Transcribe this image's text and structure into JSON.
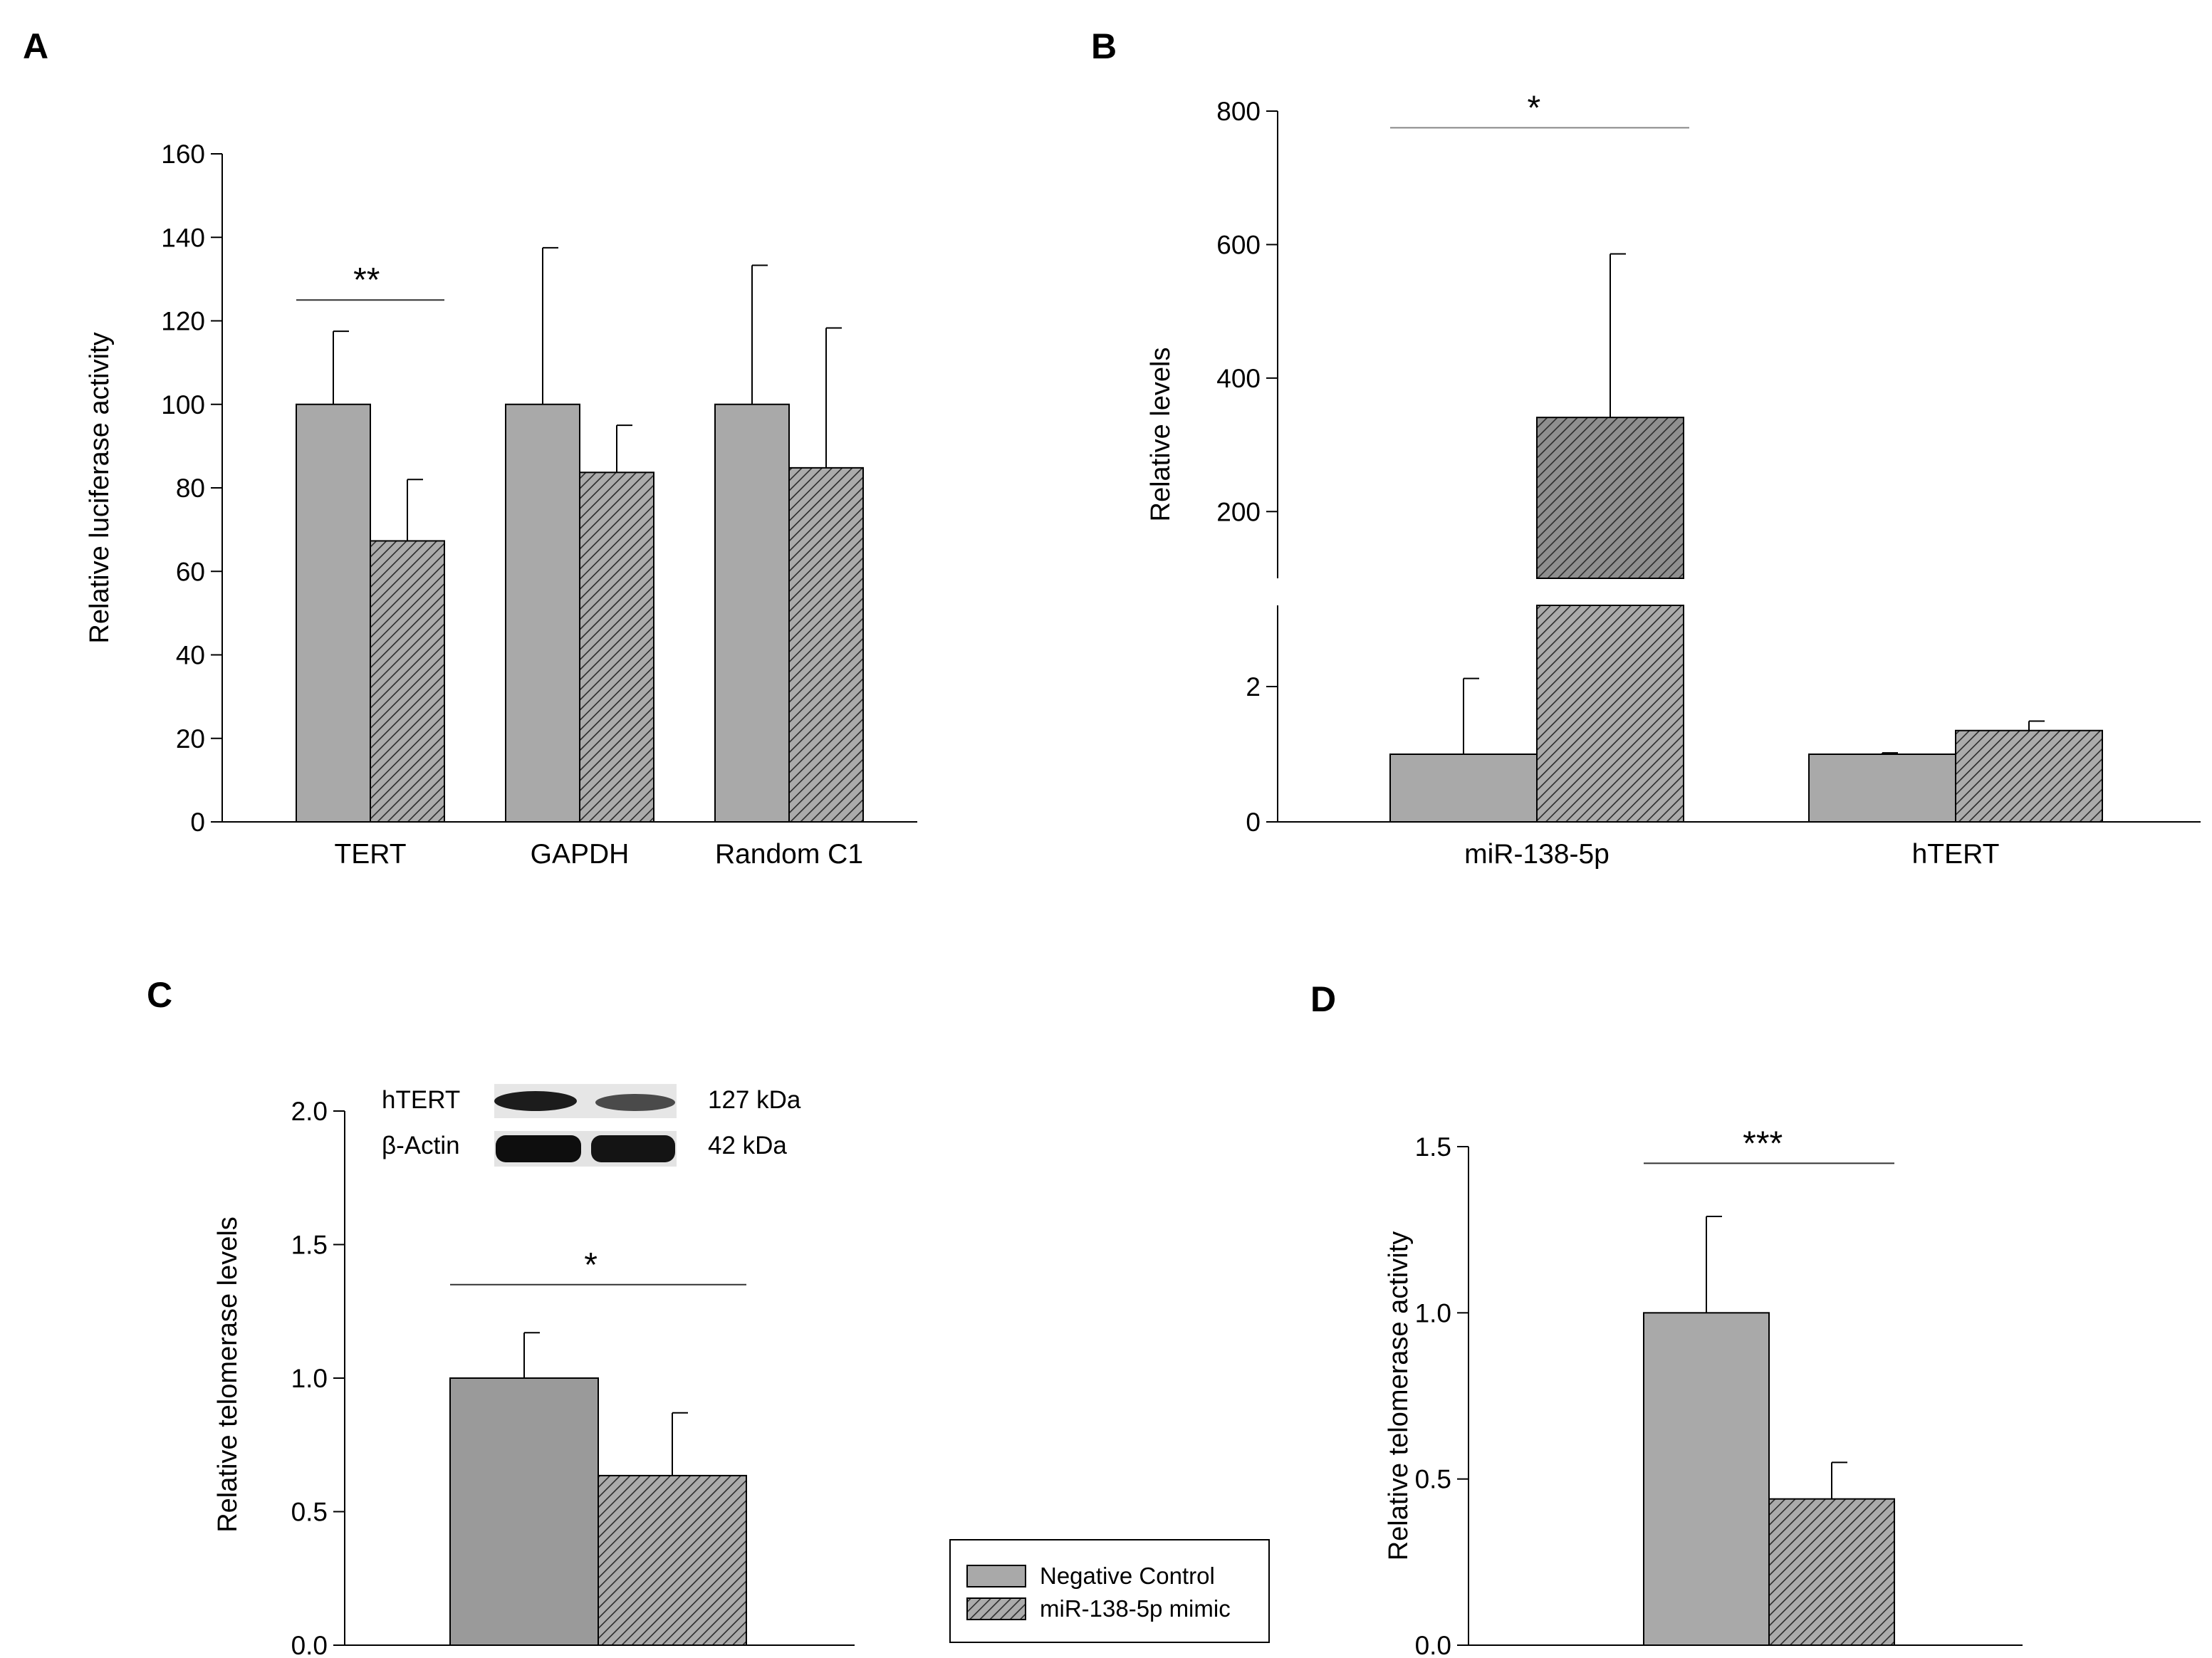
{
  "colors": {
    "control": "#a9a9a9",
    "control_dark": "#9a9a9a",
    "mimic": "#ababab",
    "mimic_dark": "#8f8f8f",
    "hatch": "#2b2b2b",
    "line": "#000000",
    "sig": "#333333"
  },
  "legend": {
    "entries": [
      "Negative Control",
      "miR-138-5p mimic"
    ]
  },
  "blot": {
    "rows": [
      {
        "label": "hTERT",
        "size": "127 kDa"
      },
      {
        "label": "β-Actin",
        "size": "42 kDa"
      }
    ]
  },
  "chart_data": [
    {
      "panel": "A",
      "type": "bar",
      "title": "",
      "xlabel": "",
      "ylabel": "Relative luciferase activity",
      "ylim": [
        0,
        160
      ],
      "yticks": [
        0,
        20,
        40,
        60,
        80,
        100,
        120,
        140,
        160
      ],
      "ytick_labels": [
        "0",
        "20",
        "40",
        "60",
        "80",
        "100",
        "120",
        "140",
        "160"
      ],
      "categories": [
        "TERT",
        "GAPDH",
        "Random C1"
      ],
      "series": [
        {
          "name": "Negative Control",
          "values": [
            100,
            100,
            100
          ],
          "errors": [
            17.5,
            37.5,
            33.3
          ]
        },
        {
          "name": "miR-138-5p mimic",
          "values": [
            67.3,
            83.7,
            84.8
          ],
          "errors": [
            14.7,
            11.3,
            33.5
          ]
        }
      ],
      "significance": [
        {
          "category": "TERT",
          "label": "**",
          "y": 125
        }
      ]
    },
    {
      "panel": "B",
      "type": "bar",
      "title": "",
      "xlabel": "",
      "ylabel": "Relative levels",
      "axis_break": true,
      "lower_ylim": [
        0,
        3.2
      ],
      "lower_yticks": [
        0,
        2
      ],
      "lower_ytick_labels": [
        "0",
        "2"
      ],
      "upper_ylim": [
        100,
        800
      ],
      "upper_yticks": [
        200,
        400,
        600,
        800
      ],
      "upper_ytick_labels": [
        "200",
        "400",
        "600",
        "800"
      ],
      "categories": [
        "miR-138-5p",
        "hTERT"
      ],
      "series": [
        {
          "name": "Negative Control",
          "values": [
            1.0,
            1.0
          ],
          "errors": [
            1.12,
            0.02
          ]
        },
        {
          "name": "miR-138-5p mimic",
          "values": [
            341,
            1.35
          ],
          "errors": [
            245,
            0.14
          ]
        }
      ],
      "significance": [
        {
          "category": "miR-138-5p",
          "label": "*",
          "y": 775
        }
      ]
    },
    {
      "panel": "C",
      "type": "bar",
      "title": "",
      "xlabel": "",
      "ylabel": "Relative telomerase levels",
      "ylim": [
        0,
        2.0
      ],
      "yticks": [
        0,
        0.5,
        1.0,
        1.5,
        2.0
      ],
      "ytick_labels": [
        "0.0",
        "0.5",
        "1.0",
        "1.5",
        "2.0"
      ],
      "categories": [
        ""
      ],
      "series": [
        {
          "name": "Negative Control",
          "values": [
            1.0
          ],
          "errors": [
            0.17
          ]
        },
        {
          "name": "miR-138-5p mimic",
          "values": [
            0.635
          ],
          "errors": [
            0.235
          ]
        }
      ],
      "significance": [
        {
          "category": "",
          "label": "*",
          "y": 1.35
        }
      ]
    },
    {
      "panel": "D",
      "type": "bar",
      "title": "",
      "xlabel": "",
      "ylabel": "Relative telomerase activity",
      "ylim": [
        0,
        1.5
      ],
      "yticks": [
        0,
        0.5,
        1.0,
        1.5
      ],
      "ytick_labels": [
        "0.0",
        "0.5",
        "1.0",
        "1.5"
      ],
      "categories": [
        ""
      ],
      "series": [
        {
          "name": "Negative Control",
          "values": [
            1.0
          ],
          "errors": [
            0.29
          ]
        },
        {
          "name": "miR-138-5p mimic",
          "values": [
            0.44
          ],
          "errors": [
            0.11
          ]
        }
      ],
      "significance": [
        {
          "category": "",
          "label": "***",
          "y": 1.45
        }
      ]
    }
  ]
}
